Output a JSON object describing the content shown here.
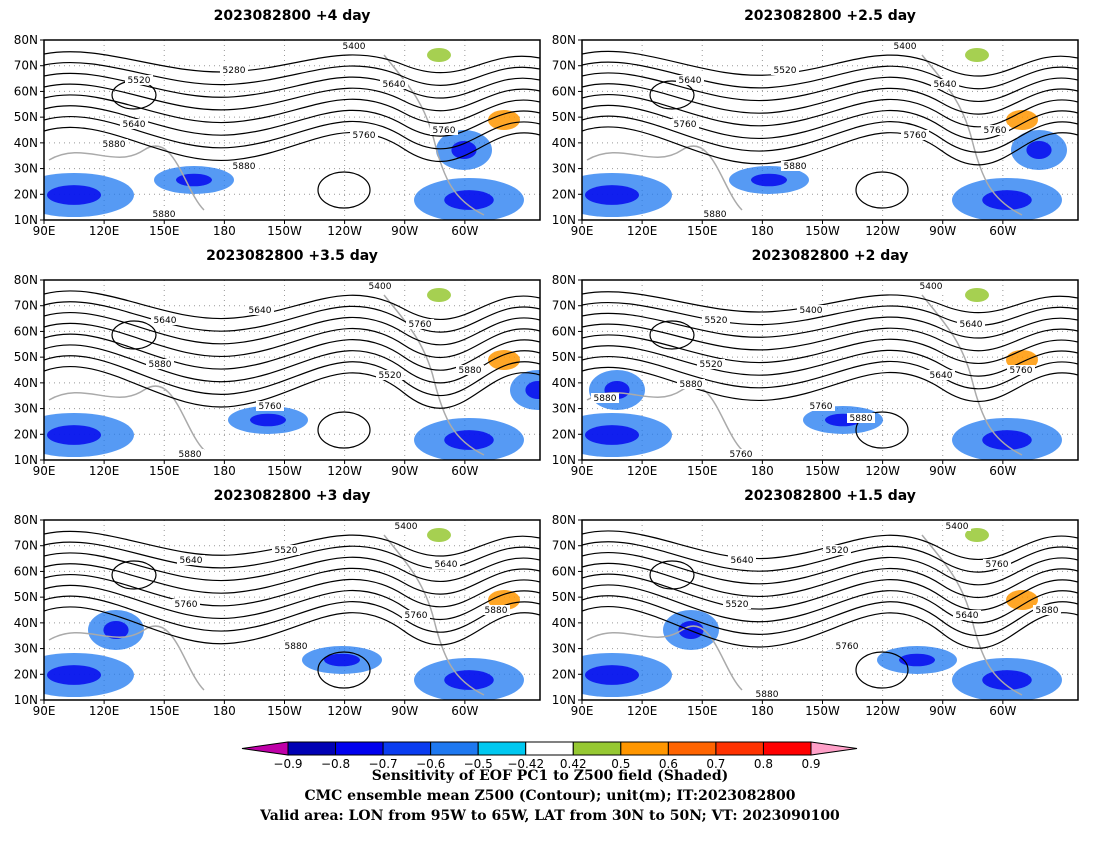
{
  "panels": [
    {
      "title": "2023082800  +4 day",
      "contour_labels": [
        "5400",
        "5280",
        "5520",
        "5640",
        "5640",
        "5760",
        "5880",
        "5760",
        "5880",
        "5880"
      ]
    },
    {
      "title": "2023082800  +2.5  day",
      "contour_labels": [
        "5400",
        "5520",
        "5640",
        "5640",
        "5760",
        "5760",
        "5880",
        "5760",
        "5880"
      ]
    },
    {
      "title": "2023082800  +3.5  day",
      "contour_labels": [
        "5400",
        "5640",
        "5640",
        "5760",
        "5880",
        "5520",
        "5760",
        "5880",
        "5880"
      ]
    },
    {
      "title": "2023082800  +2  day",
      "contour_labels": [
        "5400",
        "5400",
        "5520",
        "5640",
        "5520",
        "5640",
        "5760",
        "5760",
        "5760",
        "5880",
        "5880",
        "5880"
      ]
    },
    {
      "title": "2023082800  +3  day",
      "contour_labels": [
        "5400",
        "5520",
        "5640",
        "5640",
        "5760",
        "5760",
        "5880",
        "5880"
      ]
    },
    {
      "title": "2023082800  +1.5  day",
      "contour_labels": [
        "5400",
        "5520",
        "5640",
        "5760",
        "5520",
        "5640",
        "5760",
        "5880",
        "5880"
      ]
    }
  ],
  "axes": {
    "lat_ticks": [
      "80N",
      "70N",
      "60N",
      "50N",
      "40N",
      "30N",
      "20N",
      "10N"
    ],
    "lon_ticks": [
      "90E",
      "120E",
      "150E",
      "180",
      "150W",
      "120W",
      "90W",
      "60W"
    ]
  },
  "colorbar": {
    "tick_labels": [
      "−0.9",
      "−0.8",
      "−0.7",
      "−0.6",
      "−0.5",
      "−0.42",
      "0.42",
      "0.5",
      "0.6",
      "0.7",
      "0.8",
      "0.9"
    ],
    "colors": [
      "#bf00a8",
      "#0000b4",
      "#0000ee",
      "#0a3cf0",
      "#1e78f0",
      "#00c8f0",
      "#ffffff",
      "#96c832",
      "#ff9600",
      "#ff6400",
      "#ff3200",
      "#ff0000",
      "#ffa0c8"
    ]
  },
  "caption": {
    "line1": "Sensitivity of EOF PC1 to Z500 field (Shaded)",
    "line2": "CMC ensemble mean Z500 (Contour); unit(m); IT:2023082800",
    "line3": "Valid area: LON from 95W to 65W, LAT from 30N to 50N; VT: 2023090100"
  }
}
